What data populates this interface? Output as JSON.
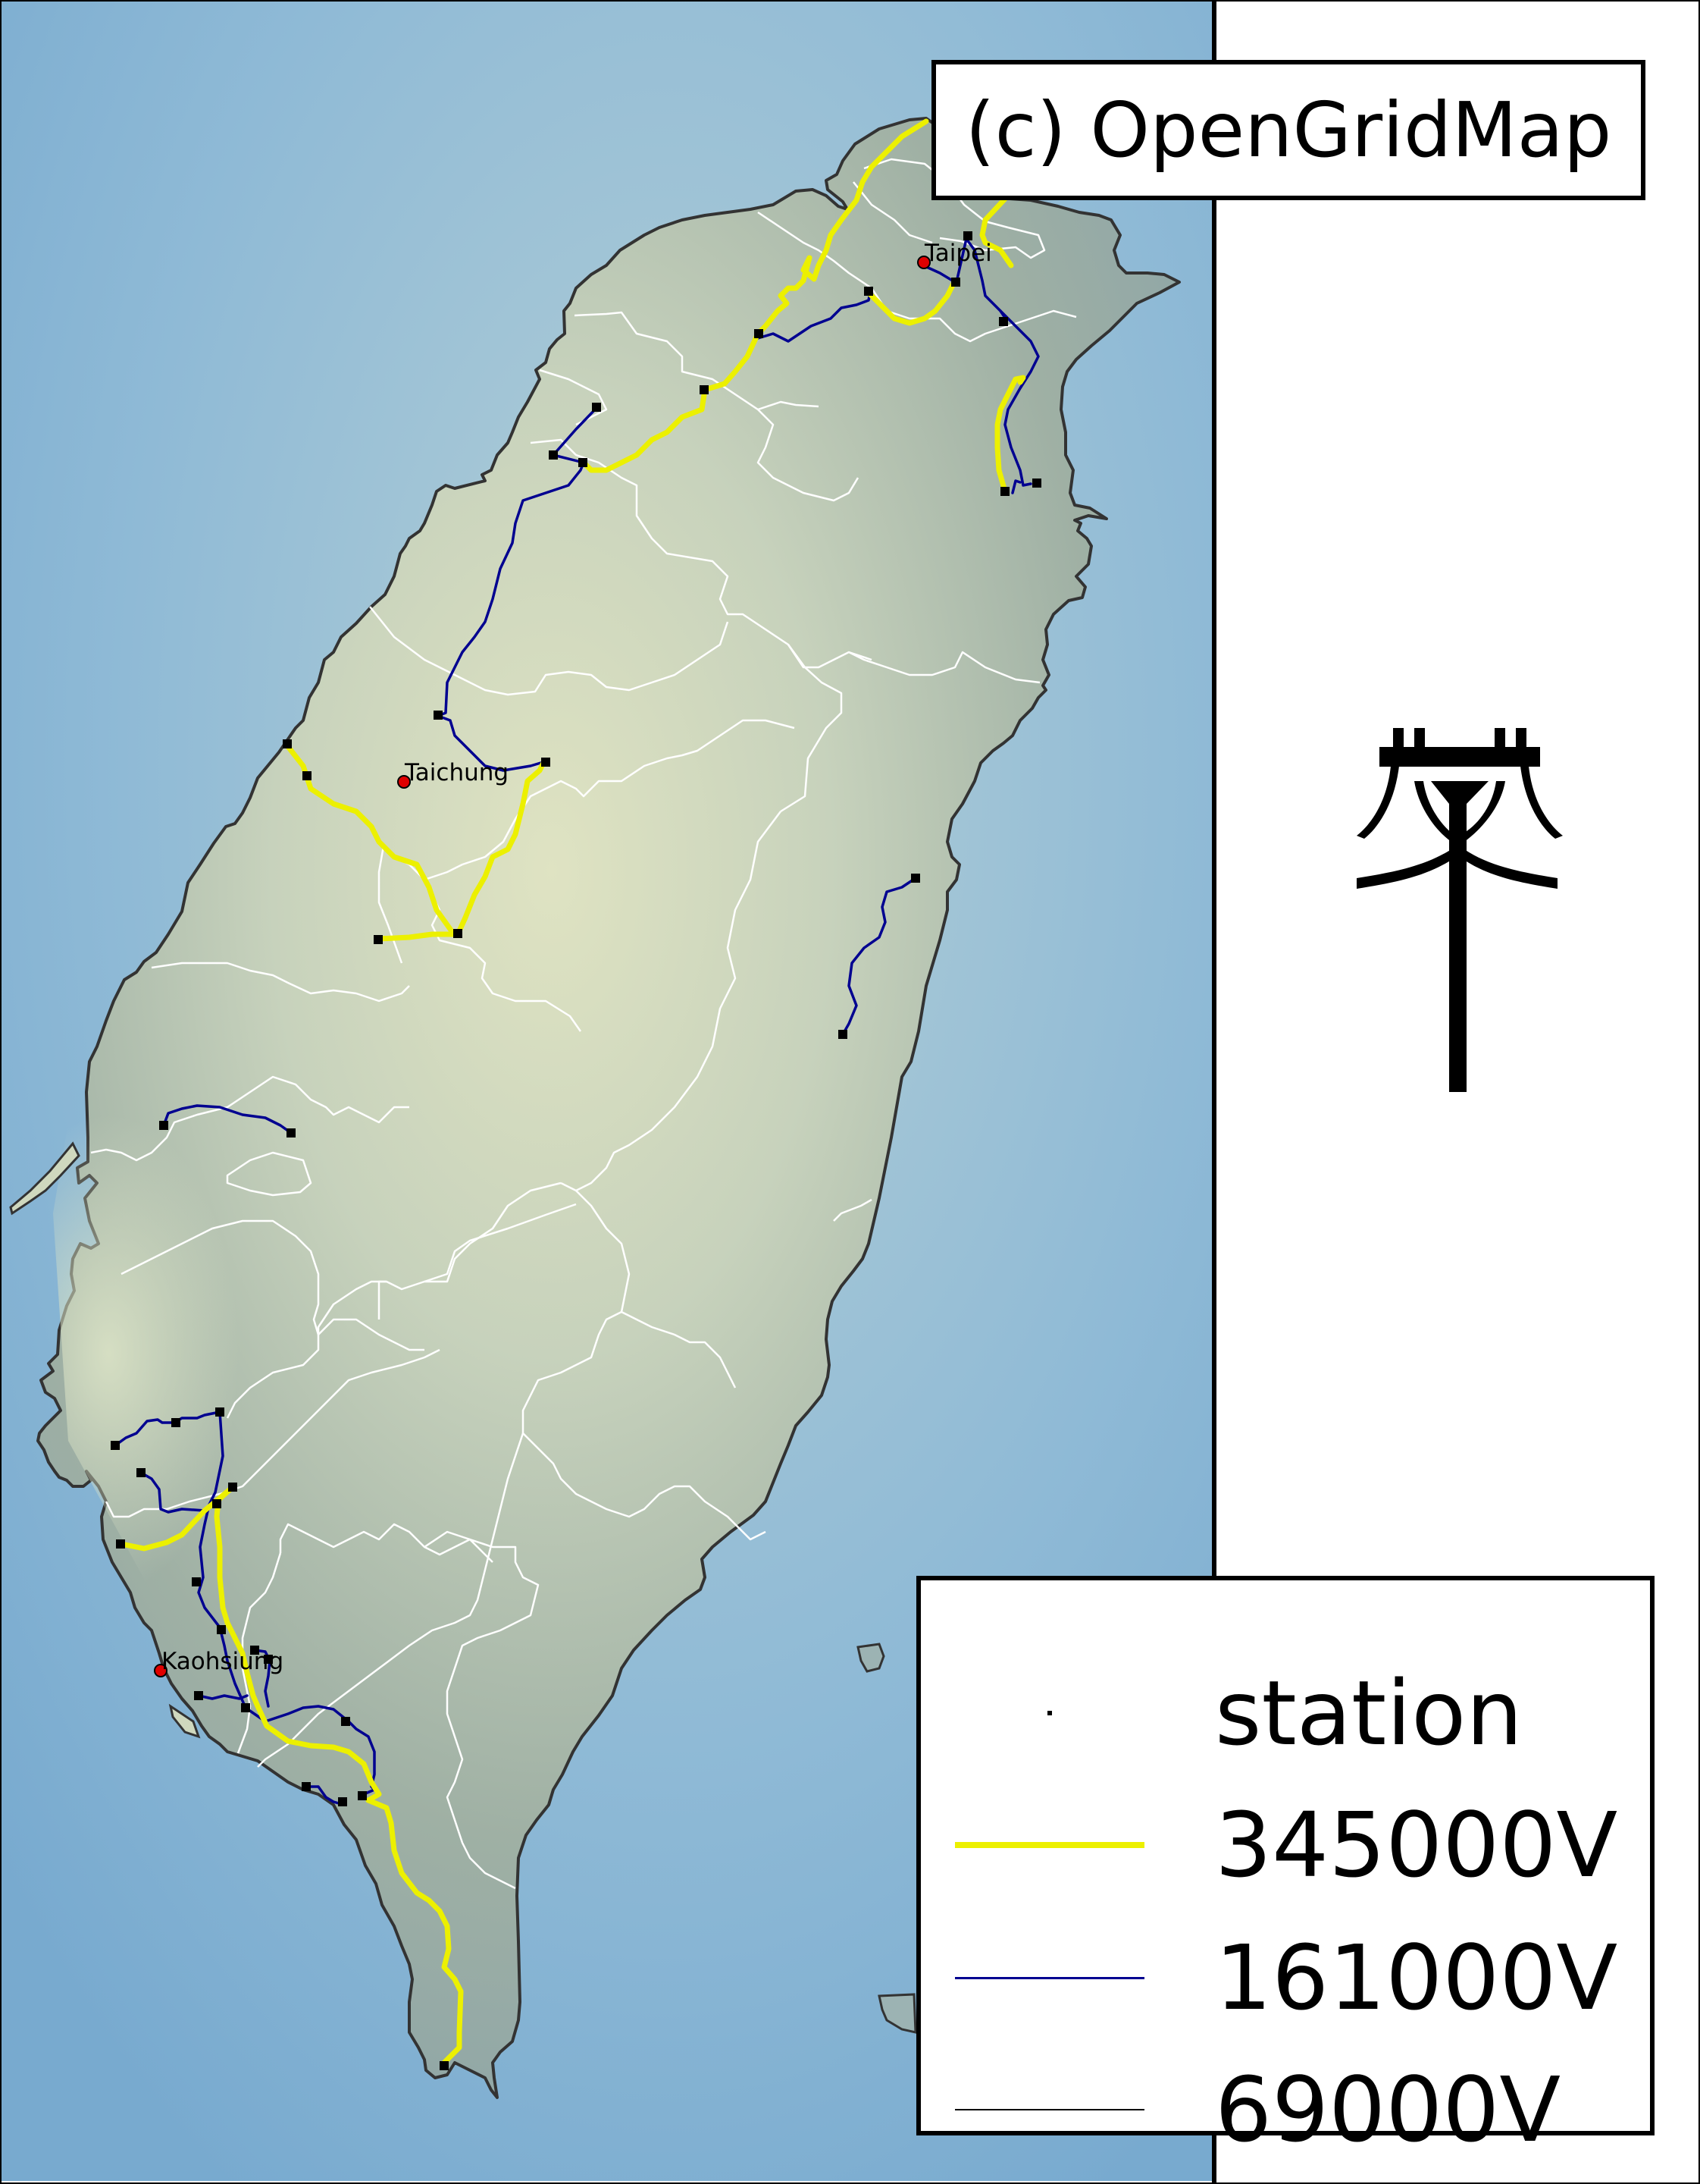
{
  "credit": "(c) OpenGridMap",
  "colors": {
    "sea": "#7eb0d4",
    "land_light": "#dde3c3",
    "land_dark": "#8ea398",
    "coast": "#333333",
    "border": "#ffffff",
    "line_345kv": "#ecf000",
    "line_161kv": "#000090",
    "line_69kv": "#000000",
    "station": "#000000",
    "city_marker": "#e00000"
  },
  "cities": [
    {
      "name": "Taipei"
    },
    {
      "name": "Taichung"
    },
    {
      "name": "Kaohsiung"
    }
  ],
  "legend": {
    "items": [
      {
        "label": "station",
        "symbol": "station-dot"
      },
      {
        "label": "345000V",
        "symbol": "yellow-line"
      },
      {
        "label": "161000V",
        "symbol": "blue-line"
      },
      {
        "label": "69000V",
        "symbol": "black-line"
      }
    ]
  },
  "icon": "power-pylon-icon"
}
